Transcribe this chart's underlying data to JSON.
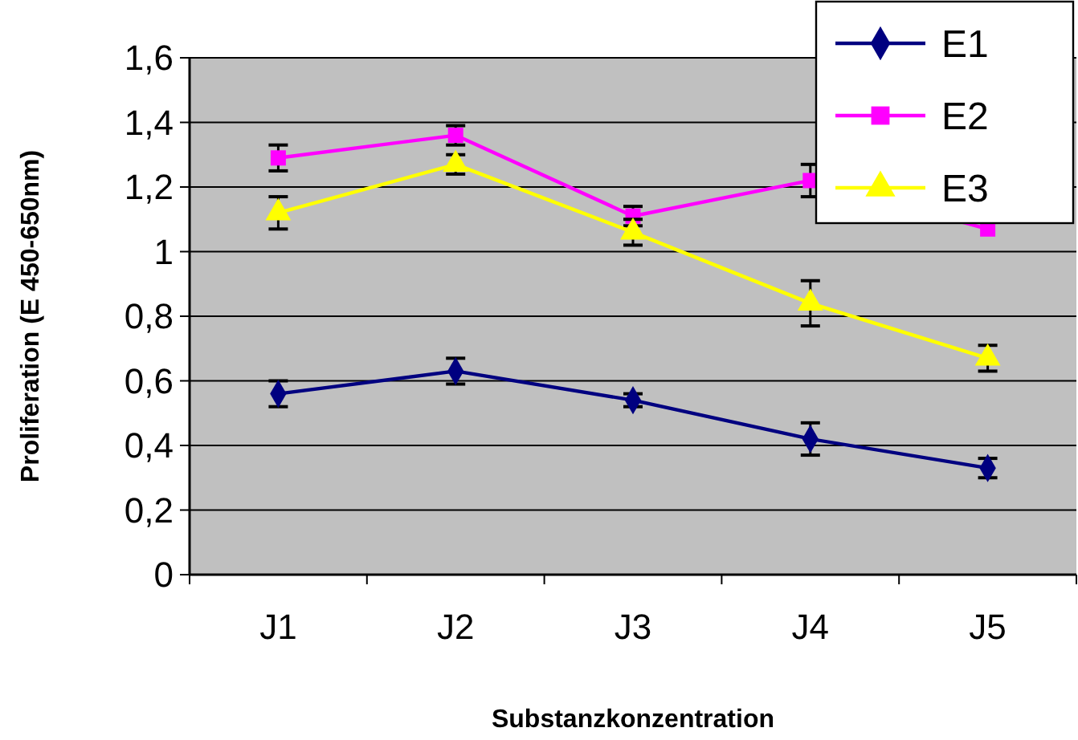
{
  "chart_data": {
    "type": "line",
    "xlabel": "Substanzkonzentration",
    "ylabel": "Proliferation (E 450-650nm)",
    "categories": [
      "J1",
      "J2",
      "J3",
      "J4",
      "J5"
    ],
    "series": [
      {
        "name": "E1",
        "color": "#000080",
        "marker": "diamond",
        "values": [
          0.56,
          0.63,
          0.54,
          0.42,
          0.33
        ],
        "errors": [
          0.04,
          0.04,
          0.02,
          0.05,
          0.03
        ]
      },
      {
        "name": "E2",
        "color": "#ff00ff",
        "marker": "square",
        "values": [
          1.29,
          1.36,
          1.11,
          1.22,
          1.07
        ],
        "errors": [
          0.04,
          0.03,
          0.03,
          0.05,
          null
        ]
      },
      {
        "name": "E3",
        "color": "#ffff00",
        "marker": "triangle",
        "values": [
          1.12,
          1.27,
          1.06,
          0.84,
          0.67
        ],
        "errors": [
          0.05,
          0.03,
          0.04,
          0.07,
          0.04
        ]
      }
    ],
    "ylim": [
      0,
      1.6
    ],
    "yticks": [
      0,
      {
        "value": 0.2,
        "label": "0,2"
      },
      {
        "value": 0.4,
        "label": "0,4"
      },
      {
        "value": 0.6,
        "label": "0,6"
      },
      {
        "value": 0.8,
        "label": "0,8"
      },
      1,
      {
        "value": 1.2,
        "label": "1,2"
      },
      {
        "value": 1.4,
        "label": "1,4"
      },
      {
        "value": 1.6,
        "label": "1,6"
      }
    ],
    "grid": "y",
    "legend": "top right"
  }
}
